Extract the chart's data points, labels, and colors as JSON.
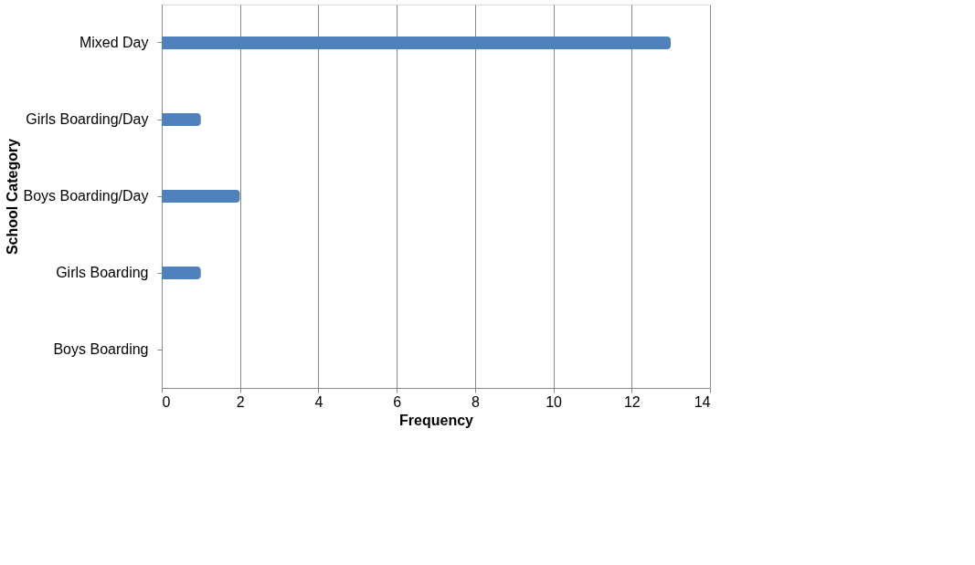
{
  "chart_data": {
    "type": "bar",
    "orientation": "horizontal",
    "xlabel": "Frequency",
    "ylabel": "School Category",
    "categories": [
      "Mixed Day",
      "Girls Boarding/Day",
      "Boys Boarding/Day",
      "Girls Boarding",
      "Boys Boarding"
    ],
    "values": [
      13,
      1,
      2,
      1,
      0
    ],
    "color": "#4f81bd",
    "xlim": [
      0,
      14
    ],
    "xticks": [
      0,
      2,
      4,
      6,
      8,
      10,
      12,
      14
    ],
    "grid": "x"
  }
}
